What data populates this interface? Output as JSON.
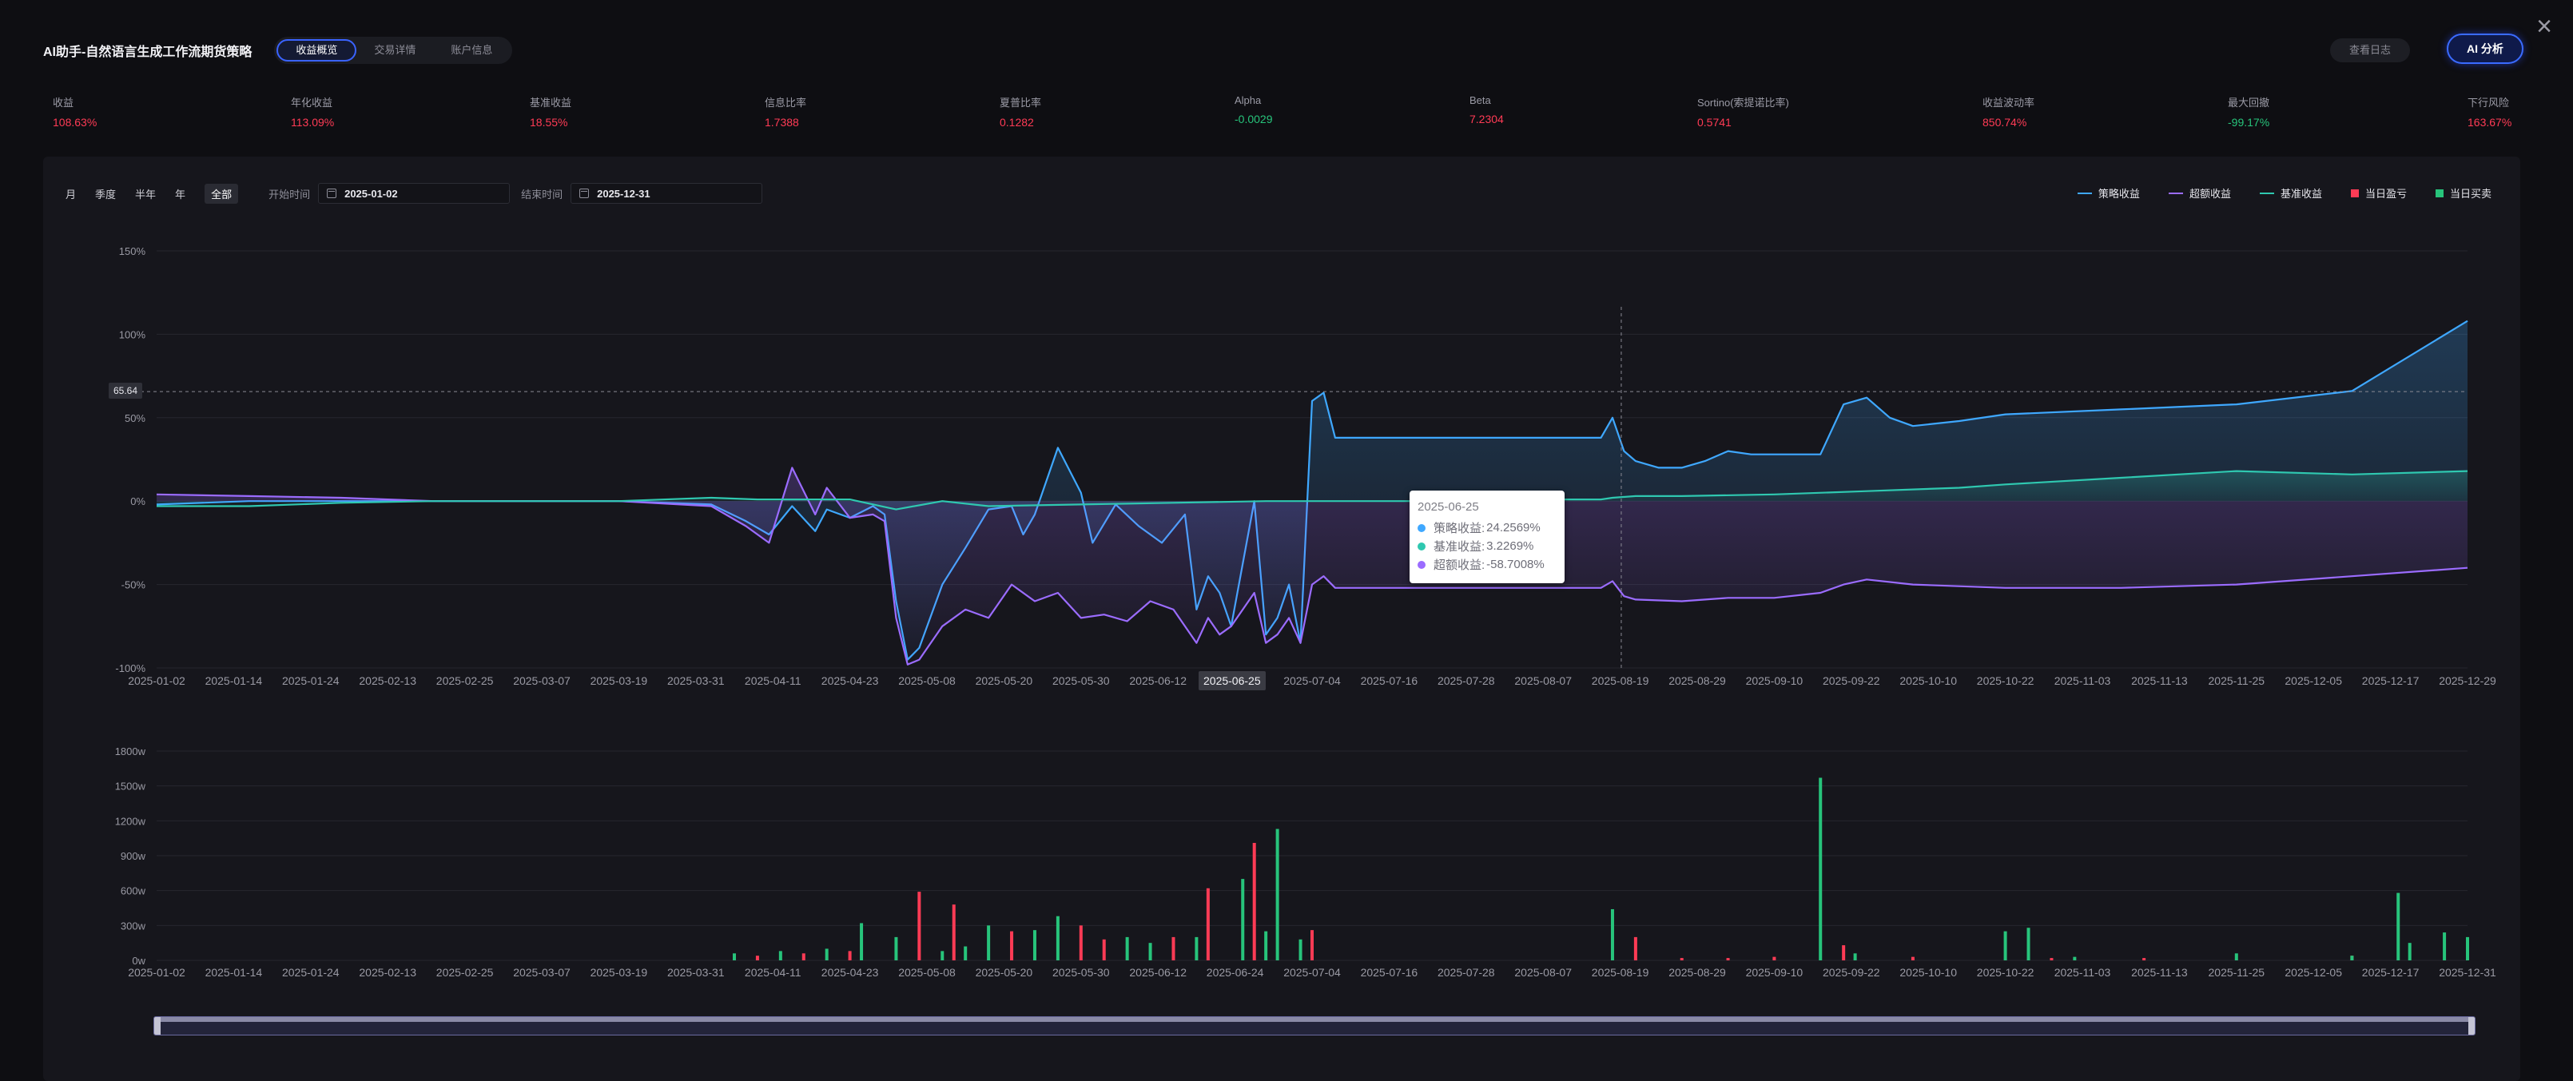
{
  "header": {
    "title": "AI助手-自然语言生成工作流期货策略",
    "tabs": [
      {
        "label": "收益概览"
      },
      {
        "label": "交易详情"
      },
      {
        "label": "账户信息"
      }
    ],
    "log_button": "查看日志",
    "ai_button": "AI 分析"
  },
  "metrics": [
    {
      "label": "收益",
      "value": "108.63%",
      "color": "#ff3b55"
    },
    {
      "label": "年化收益",
      "value": "113.09%",
      "color": "#ff3b55"
    },
    {
      "label": "基准收益",
      "value": "18.55%",
      "color": "#ff3b55"
    },
    {
      "label": "信息比率",
      "value": "1.7388",
      "color": "#ff3b55"
    },
    {
      "label": "夏普比率",
      "value": "0.1282",
      "color": "#ff3b55"
    },
    {
      "label": "Alpha",
      "value": "-0.0029",
      "color": "#27c47b"
    },
    {
      "label": "Beta",
      "value": "7.2304",
      "color": "#ff3b55"
    },
    {
      "label": "Sortino(索提诺比率)",
      "value": "0.5741",
      "color": "#ff3b55"
    },
    {
      "label": "收益波动率",
      "value": "850.74%",
      "color": "#ff3b55"
    },
    {
      "label": "最大回撤",
      "value": "-99.17%",
      "color": "#27c47b"
    },
    {
      "label": "下行风险",
      "value": "163.67%",
      "color": "#ff3b55"
    }
  ],
  "filters": {
    "periods": [
      "月",
      "季度",
      "半年",
      "年",
      "全部"
    ],
    "active_period": "全部",
    "start_label": "开始时间",
    "start_value": "2025-01-02",
    "end_label": "结束时间",
    "end_value": "2025-12-31"
  },
  "legend": [
    {
      "name": "策略收益",
      "color": "#3fa8ff",
      "kind": "line"
    },
    {
      "name": "超额收益",
      "color": "#9b6cff",
      "kind": "line"
    },
    {
      "name": "基准收益",
      "color": "#2fc8b0",
      "kind": "line"
    },
    {
      "name": "当日盈亏",
      "color": "#ff3b55",
      "kind": "box"
    },
    {
      "name": "当日买卖",
      "color": "#27c47b",
      "kind": "box"
    }
  ],
  "tooltip": {
    "date": "2025-06-25",
    "rows": [
      {
        "label": "策略收益:",
        "value": "24.2569%",
        "color": "#3fa8ff"
      },
      {
        "label": "基准收益:",
        "value": "3.2269%",
        "color": "#2fc8b0"
      },
      {
        "label": "超额收益:",
        "value": "-58.7008%",
        "color": "#9b6cff"
      }
    ]
  },
  "crosshair": {
    "y_value": "65.64",
    "x_label": "2025-06-25"
  },
  "chart_data": [
    {
      "type": "line",
      "title": "",
      "yticks": [
        "150%",
        "100%",
        "50%",
        "0%",
        "-50%",
        "-100%"
      ],
      "ylim": [
        -100,
        150
      ],
      "xticks": [
        "2025-01-02",
        "2025-01-14",
        "2025-01-24",
        "2025-02-13",
        "2025-02-25",
        "2025-03-07",
        "2025-03-19",
        "2025-03-31",
        "2025-04-11",
        "2025-04-23",
        "2025-05-08",
        "2025-05-20",
        "2025-05-30",
        "2025-06-12",
        "2025-06-25",
        "2025-07-04",
        "2025-07-16",
        "2025-07-28",
        "2025-08-07",
        "2025-08-19",
        "2025-08-29",
        "2025-09-10",
        "2025-09-22",
        "2025-10-10",
        "2025-10-22",
        "2025-11-03",
        "2025-11-13",
        "2025-11-25",
        "2025-12-05",
        "2025-12-17",
        "2025-12-29"
      ],
      "series": [
        {
          "name": "策略收益",
          "color": "#3fa8ff",
          "points": [
            [
              0,
              -2
            ],
            [
              0.04,
              0
            ],
            [
              0.08,
              0
            ],
            [
              0.12,
              0
            ],
            [
              0.16,
              0
            ],
            [
              0.2,
              0
            ],
            [
              0.24,
              -2
            ],
            [
              0.255,
              -12
            ],
            [
              0.265,
              -20
            ],
            [
              0.275,
              -3
            ],
            [
              0.285,
              -18
            ],
            [
              0.29,
              -5
            ],
            [
              0.3,
              -10
            ],
            [
              0.31,
              -3
            ],
            [
              0.315,
              -8
            ],
            [
              0.32,
              -60
            ],
            [
              0.325,
              -95
            ],
            [
              0.33,
              -88
            ],
            [
              0.34,
              -50
            ],
            [
              0.35,
              -28
            ],
            [
              0.36,
              -5
            ],
            [
              0.37,
              -3
            ],
            [
              0.375,
              -20
            ],
            [
              0.38,
              -8
            ],
            [
              0.39,
              32
            ],
            [
              0.4,
              5
            ],
            [
              0.405,
              -25
            ],
            [
              0.415,
              -2
            ],
            [
              0.425,
              -15
            ],
            [
              0.435,
              -25
            ],
            [
              0.445,
              -8
            ],
            [
              0.45,
              -65
            ],
            [
              0.455,
              -45
            ],
            [
              0.46,
              -55
            ],
            [
              0.465,
              -75
            ],
            [
              0.475,
              0
            ],
            [
              0.48,
              -80
            ],
            [
              0.485,
              -70
            ],
            [
              0.49,
              -50
            ],
            [
              0.495,
              -85
            ],
            [
              0.5,
              60
            ],
            [
              0.505,
              65
            ],
            [
              0.51,
              38
            ],
            [
              0.55,
              38
            ],
            [
              0.6,
              38
            ],
            [
              0.625,
              38
            ],
            [
              0.63,
              50
            ],
            [
              0.635,
              30
            ],
            [
              0.64,
              24
            ],
            [
              0.65,
              20
            ],
            [
              0.66,
              20
            ],
            [
              0.67,
              24
            ],
            [
              0.68,
              30
            ],
            [
              0.69,
              28
            ],
            [
              0.7,
              28
            ],
            [
              0.72,
              28
            ],
            [
              0.73,
              58
            ],
            [
              0.74,
              62
            ],
            [
              0.75,
              50
            ],
            [
              0.76,
              45
            ],
            [
              0.78,
              48
            ],
            [
              0.8,
              52
            ],
            [
              0.85,
              55
            ],
            [
              0.9,
              58
            ],
            [
              0.95,
              66
            ],
            [
              1.0,
              108
            ]
          ]
        },
        {
          "name": "超额收益",
          "color": "#9b6cff",
          "points": [
            [
              0,
              4
            ],
            [
              0.04,
              3
            ],
            [
              0.08,
              2
            ],
            [
              0.12,
              0
            ],
            [
              0.16,
              0
            ],
            [
              0.2,
              0
            ],
            [
              0.24,
              -3
            ],
            [
              0.255,
              -15
            ],
            [
              0.265,
              -25
            ],
            [
              0.275,
              20
            ],
            [
              0.285,
              -8
            ],
            [
              0.29,
              8
            ],
            [
              0.3,
              -10
            ],
            [
              0.31,
              -8
            ],
            [
              0.315,
              -12
            ],
            [
              0.32,
              -70
            ],
            [
              0.325,
              -98
            ],
            [
              0.33,
              -95
            ],
            [
              0.34,
              -75
            ],
            [
              0.35,
              -65
            ],
            [
              0.36,
              -70
            ],
            [
              0.37,
              -50
            ],
            [
              0.38,
              -60
            ],
            [
              0.39,
              -55
            ],
            [
              0.4,
              -70
            ],
            [
              0.41,
              -68
            ],
            [
              0.42,
              -72
            ],
            [
              0.43,
              -60
            ],
            [
              0.44,
              -65
            ],
            [
              0.45,
              -85
            ],
            [
              0.455,
              -70
            ],
            [
              0.46,
              -80
            ],
            [
              0.465,
              -75
            ],
            [
              0.475,
              -55
            ],
            [
              0.48,
              -85
            ],
            [
              0.485,
              -80
            ],
            [
              0.49,
              -70
            ],
            [
              0.495,
              -85
            ],
            [
              0.5,
              -50
            ],
            [
              0.505,
              -45
            ],
            [
              0.51,
              -52
            ],
            [
              0.55,
              -52
            ],
            [
              0.6,
              -52
            ],
            [
              0.625,
              -52
            ],
            [
              0.63,
              -48
            ],
            [
              0.635,
              -57
            ],
            [
              0.64,
              -59
            ],
            [
              0.66,
              -60
            ],
            [
              0.68,
              -58
            ],
            [
              0.7,
              -58
            ],
            [
              0.72,
              -55
            ],
            [
              0.73,
              -50
            ],
            [
              0.74,
              -47
            ],
            [
              0.76,
              -50
            ],
            [
              0.8,
              -52
            ],
            [
              0.85,
              -52
            ],
            [
              0.9,
              -50
            ],
            [
              0.95,
              -45
            ],
            [
              1.0,
              -40
            ]
          ]
        },
        {
          "name": "基准收益",
          "color": "#2fc8b0",
          "points": [
            [
              0,
              -3
            ],
            [
              0.04,
              -3
            ],
            [
              0.08,
              -1
            ],
            [
              0.12,
              0
            ],
            [
              0.16,
              0
            ],
            [
              0.2,
              0
            ],
            [
              0.24,
              2
            ],
            [
              0.26,
              1
            ],
            [
              0.3,
              1
            ],
            [
              0.32,
              -5
            ],
            [
              0.34,
              0
            ],
            [
              0.36,
              -3
            ],
            [
              0.4,
              -2
            ],
            [
              0.44,
              -1
            ],
            [
              0.48,
              0
            ],
            [
              0.5,
              0
            ],
            [
              0.55,
              0
            ],
            [
              0.6,
              1
            ],
            [
              0.625,
              1
            ],
            [
              0.63,
              2
            ],
            [
              0.64,
              3
            ],
            [
              0.66,
              3
            ],
            [
              0.7,
              4
            ],
            [
              0.74,
              6
            ],
            [
              0.78,
              8
            ],
            [
              0.8,
              10
            ],
            [
              0.85,
              14
            ],
            [
              0.9,
              18
            ],
            [
              0.95,
              16
            ],
            [
              1.0,
              18
            ]
          ]
        }
      ]
    },
    {
      "type": "bar",
      "title": "",
      "yticks": [
        "1800w",
        "1500w",
        "1200w",
        "900w",
        "600w",
        "300w",
        "0w"
      ],
      "ylim": [
        0,
        1800
      ],
      "xticks": [
        "2025-01-02",
        "2025-01-14",
        "2025-01-24",
        "2025-02-13",
        "2025-02-25",
        "2025-03-07",
        "2025-03-19",
        "2025-03-31",
        "2025-04-11",
        "2025-04-23",
        "2025-05-08",
        "2025-05-20",
        "2025-05-30",
        "2025-06-12",
        "2025-06-24",
        "2025-07-04",
        "2025-07-16",
        "2025-07-28",
        "2025-08-07",
        "2025-08-19",
        "2025-08-29",
        "2025-09-10",
        "2025-09-22",
        "2025-10-10",
        "2025-10-22",
        "2025-11-03",
        "2025-11-13",
        "2025-11-25",
        "2025-12-05",
        "2025-12-17",
        "2025-12-31"
      ],
      "series": [
        {
          "name": "当日盈亏",
          "color": "#ff3b55",
          "bars": [
            [
              0.26,
              40
            ],
            [
              0.28,
              60
            ],
            [
              0.3,
              80
            ],
            [
              0.33,
              590
            ],
            [
              0.345,
              480
            ],
            [
              0.37,
              250
            ],
            [
              0.4,
              300
            ],
            [
              0.41,
              180
            ],
            [
              0.44,
              200
            ],
            [
              0.455,
              620
            ],
            [
              0.475,
              1010
            ],
            [
              0.5,
              260
            ],
            [
              0.64,
              200
            ],
            [
              0.66,
              20
            ],
            [
              0.68,
              20
            ],
            [
              0.7,
              30
            ],
            [
              0.73,
              130
            ],
            [
              0.76,
              30
            ],
            [
              0.82,
              20
            ],
            [
              0.86,
              20
            ],
            [
              0.95,
              40
            ]
          ]
        },
        {
          "name": "当日买卖",
          "color": "#27c47b",
          "bars": [
            [
              0.25,
              60
            ],
            [
              0.27,
              80
            ],
            [
              0.29,
              100
            ],
            [
              0.305,
              320
            ],
            [
              0.32,
              200
            ],
            [
              0.34,
              80
            ],
            [
              0.35,
              120
            ],
            [
              0.36,
              300
            ],
            [
              0.38,
              260
            ],
            [
              0.39,
              380
            ],
            [
              0.42,
              200
            ],
            [
              0.43,
              150
            ],
            [
              0.45,
              200
            ],
            [
              0.47,
              700
            ],
            [
              0.48,
              250
            ],
            [
              0.485,
              1130
            ],
            [
              0.495,
              180
            ],
            [
              0.63,
              440
            ],
            [
              0.72,
              1570
            ],
            [
              0.735,
              60
            ],
            [
              0.8,
              250
            ],
            [
              0.81,
              280
            ],
            [
              0.83,
              30
            ],
            [
              0.9,
              60
            ],
            [
              0.95,
              40
            ],
            [
              0.97,
              580
            ],
            [
              0.975,
              150
            ],
            [
              0.99,
              240
            ],
            [
              1.0,
              200
            ]
          ]
        }
      ]
    }
  ]
}
